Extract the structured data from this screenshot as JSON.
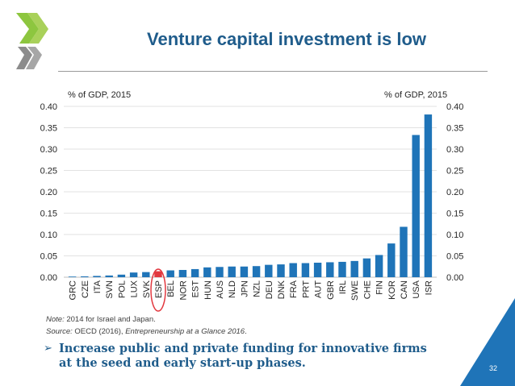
{
  "slide": {
    "title": "Venture capital investment is low",
    "note_label": "Note:",
    "note_text": " 2014 for Israel and Japan.",
    "source_label": "Source:",
    "source_text": " OECD (2016), ",
    "source_title": "Entrepreneurship at a Glance 2016",
    "source_end": ".",
    "bullet_mark": "➢",
    "bullet_text": "Increase public and private funding for innovative firms at the seed and early start-up phases.",
    "page_number": "32"
  },
  "colors": {
    "bar": "#1f74b8",
    "highlight_bar": "#e2383f",
    "title": "#1f5c8b",
    "logo_green": "#8dc63f",
    "logo_grey": "#8c8c8c",
    "corner": "#1f74b8"
  },
  "icons": {
    "logo": "oecd-chevron-logo",
    "bullet": "arrow-bullet-icon"
  },
  "chart_data": {
    "type": "bar",
    "ylabel_left": "% of GDP, 2015",
    "ylabel_right": "% of GDP, 2015",
    "ylim": [
      0,
      0.4
    ],
    "yticks": [
      "0.00",
      "0.05",
      "0.10",
      "0.15",
      "0.20",
      "0.25",
      "0.30",
      "0.35",
      "0.40"
    ],
    "highlight": "ESP",
    "categories": [
      "GRC",
      "CZE",
      "ITA",
      "SVN",
      "POL",
      "LUX",
      "SVK",
      "ESP",
      "BEL",
      "NOR",
      "EST",
      "HUN",
      "AUS",
      "NLD",
      "JPN",
      "NZL",
      "DEU",
      "DNK",
      "FRA",
      "PRT",
      "AUT",
      "GBR",
      "IRL",
      "SWE",
      "CHE",
      "FIN",
      "KOR",
      "CAN",
      "USA",
      "ISR"
    ],
    "values": [
      0.001,
      0.002,
      0.003,
      0.004,
      0.006,
      0.011,
      0.012,
      0.014,
      0.016,
      0.017,
      0.019,
      0.023,
      0.024,
      0.025,
      0.025,
      0.026,
      0.029,
      0.03,
      0.033,
      0.033,
      0.034,
      0.035,
      0.036,
      0.038,
      0.044,
      0.052,
      0.079,
      0.118,
      0.333,
      0.381
    ]
  }
}
